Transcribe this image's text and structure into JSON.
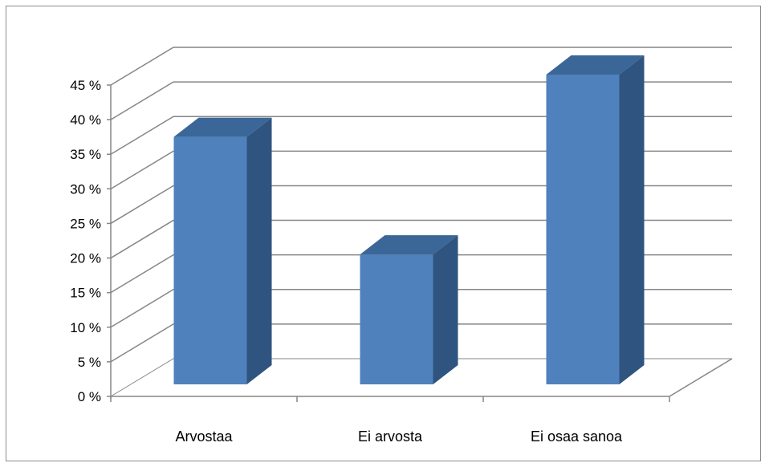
{
  "chart_data": {
    "type": "bar",
    "three_d": true,
    "categories": [
      "Arvostaa",
      "Ei arvosta",
      "Ei osaa sanoa"
    ],
    "values": [
      36,
      19,
      45
    ],
    "value_unit": "%",
    "ylim": [
      0,
      45
    ],
    "y_ticks": [
      0,
      5,
      10,
      15,
      20,
      25,
      30,
      35,
      40,
      45
    ],
    "y_tick_labels": [
      "0 %",
      "5 %",
      "10 %",
      "15 %",
      "20 %",
      "25 %",
      "30 %",
      "35 %",
      "40 %",
      "45 %"
    ],
    "grid": true,
    "legend": "none",
    "colors": {
      "bar_front": "#4f81bd",
      "bar_top": "#3a6797",
      "bar_side": "#2f5480",
      "grid": "#868686",
      "axis": "#868686",
      "frame": "#8c8c8c"
    }
  }
}
